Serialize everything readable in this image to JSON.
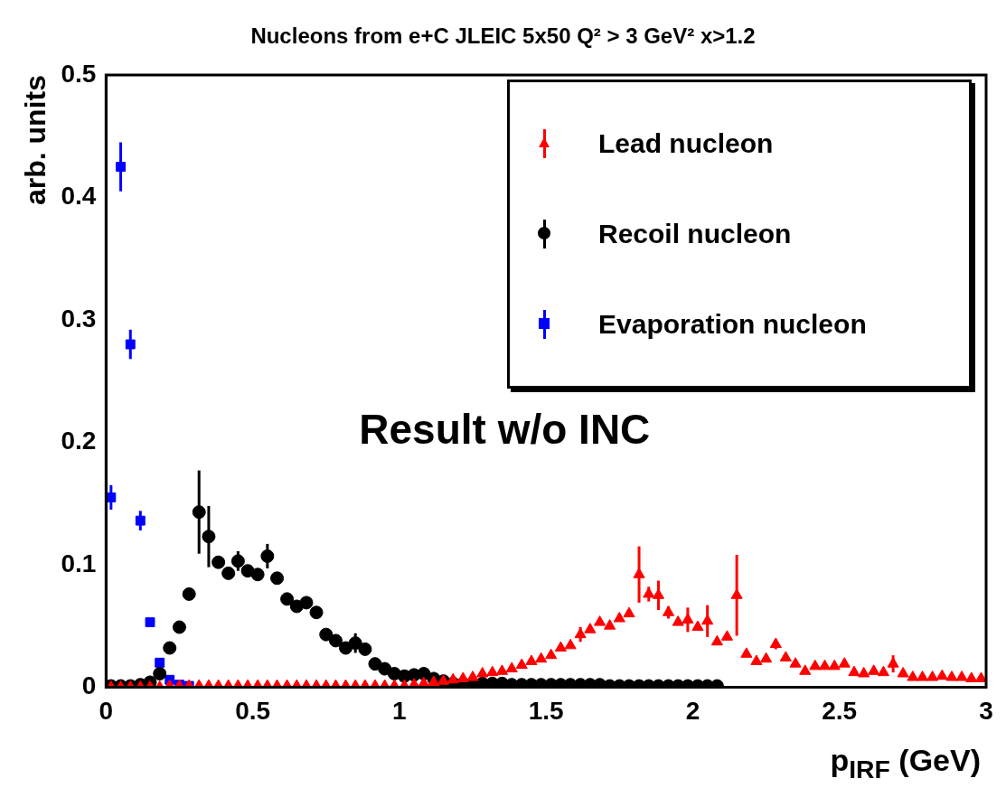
{
  "chart_data": {
    "type": "scatter",
    "title": "Nucleons from e+C JLEIC 5x50 Q² > 3 GeV² x>1.2",
    "xlabel": "p$_{IRF}$ (GeV)",
    "ylabel": "arb. units",
    "xlim": [
      0,
      3
    ],
    "xticks": [
      0,
      0.5,
      1,
      1.5,
      2,
      2.5,
      3
    ],
    "ylim": [
      0,
      0.5
    ],
    "yticks": [
      0,
      0.1,
      0.2,
      0.3,
      0.4,
      0.5
    ],
    "grid": false,
    "legend": "top right",
    "annotations": [
      "Result w/o INC"
    ],
    "series": [
      {
        "name": "Lead nucleon",
        "color": "#ff0000",
        "marker": "triangle",
        "x": [
          0.017,
          0.05,
          0.083,
          0.117,
          0.15,
          0.183,
          0.217,
          0.25,
          0.283,
          0.317,
          0.35,
          0.383,
          0.417,
          0.45,
          0.483,
          0.517,
          0.55,
          0.583,
          0.617,
          0.65,
          0.683,
          0.717,
          0.75,
          0.783,
          0.817,
          0.85,
          0.883,
          0.917,
          0.95,
          0.983,
          1.017,
          1.05,
          1.083,
          1.117,
          1.15,
          1.183,
          1.217,
          1.25,
          1.283,
          1.317,
          1.35,
          1.383,
          1.417,
          1.45,
          1.483,
          1.517,
          1.55,
          1.583,
          1.617,
          1.65,
          1.683,
          1.717,
          1.75,
          1.783,
          1.817,
          1.85,
          1.883,
          1.917,
          1.95,
          1.983,
          2.017,
          2.05,
          2.083,
          2.117,
          2.15,
          2.183,
          2.217,
          2.25,
          2.283,
          2.317,
          2.35,
          2.383,
          2.417,
          2.45,
          2.483,
          2.517,
          2.55,
          2.583,
          2.617,
          2.65,
          2.683,
          2.717,
          2.75,
          2.783,
          2.817,
          2.85,
          2.883,
          2.917,
          2.95,
          2.983
        ],
        "values": [
          0,
          0,
          0,
          0,
          0,
          0,
          0.001,
          0.001,
          0.001,
          0.001,
          0.001,
          0.001,
          0.001,
          0.001,
          0.001,
          0.001,
          0.001,
          0.001,
          0.001,
          0.001,
          0.001,
          0.001,
          0.001,
          0.001,
          0.001,
          0.001,
          0.001,
          0.001,
          0.001,
          0.001,
          0.001,
          0.002,
          0.003,
          0.004,
          0.005,
          0.006,
          0.007,
          0.008,
          0.011,
          0.012,
          0.013,
          0.015,
          0.018,
          0.021,
          0.023,
          0.026,
          0.032,
          0.034,
          0.043,
          0.047,
          0.053,
          0.05,
          0.056,
          0.06,
          0.092,
          0.076,
          0.075,
          0.061,
          0.053,
          0.055,
          0.049,
          0.054,
          0.037,
          0.041,
          0.075,
          0.027,
          0.021,
          0.023,
          0.035,
          0.024,
          0.019,
          0.013,
          0.017,
          0.017,
          0.017,
          0.019,
          0.012,
          0.011,
          0.013,
          0.012,
          0.019,
          0.011,
          0.008,
          0.008,
          0.008,
          0.009,
          0.008,
          0.008,
          0.007,
          0.007
        ],
        "errors": [
          null,
          null,
          null,
          null,
          null,
          null,
          null,
          null,
          null,
          null,
          null,
          null,
          null,
          null,
          null,
          null,
          null,
          null,
          null,
          null,
          null,
          null,
          null,
          null,
          null,
          null,
          null,
          null,
          null,
          null,
          null,
          null,
          null,
          null,
          null,
          null,
          null,
          null,
          null,
          null,
          null,
          null,
          null,
          null,
          null,
          null,
          null,
          null,
          0.006,
          null,
          null,
          null,
          null,
          null,
          0.023,
          0.006,
          0.012,
          0.005,
          null,
          0.01,
          null,
          0.013,
          null,
          null,
          0.033,
          null,
          null,
          null,
          0.004,
          null,
          null,
          null,
          null,
          null,
          null,
          null,
          null,
          null,
          null,
          null,
          0.007,
          null,
          null,
          null,
          null,
          null,
          null,
          null,
          null,
          null
        ]
      },
      {
        "name": "Recoil nucleon",
        "color": "#000000",
        "marker": "circle",
        "x": [
          0.017,
          0.05,
          0.083,
          0.117,
          0.15,
          0.183,
          0.217,
          0.25,
          0.283,
          0.317,
          0.35,
          0.383,
          0.417,
          0.45,
          0.483,
          0.517,
          0.55,
          0.583,
          0.617,
          0.65,
          0.683,
          0.717,
          0.75,
          0.783,
          0.817,
          0.85,
          0.883,
          0.917,
          0.95,
          0.983,
          1.017,
          1.05,
          1.083,
          1.117,
          1.15,
          1.183,
          1.217,
          1.25,
          1.283,
          1.317,
          1.35,
          1.383,
          1.417,
          1.45,
          1.483,
          1.517,
          1.55,
          1.583,
          1.617,
          1.65,
          1.683,
          1.717,
          1.75,
          1.783,
          1.817,
          1.85,
          1.883,
          1.917,
          1.95,
          1.983,
          2.017,
          2.05,
          2.083
        ],
        "values": [
          0.001,
          0.001,
          0.001,
          0.002,
          0.004,
          0.011,
          0.032,
          0.049,
          0.076,
          0.143,
          0.123,
          0.102,
          0.093,
          0.103,
          0.095,
          0.092,
          0.107,
          0.089,
          0.072,
          0.066,
          0.069,
          0.061,
          0.043,
          0.038,
          0.032,
          0.036,
          0.031,
          0.019,
          0.015,
          0.011,
          0.009,
          0.01,
          0.011,
          0.007,
          0.005,
          0.003,
          0.003,
          0.003,
          0.003,
          0.003,
          0.003,
          0.002,
          0.002,
          0.002,
          0.002,
          0.002,
          0.002,
          0.002,
          0.002,
          0.002,
          0.002,
          0.001,
          0.001,
          0.001,
          0.001,
          0.001,
          0.001,
          0.001,
          0.001,
          0.001,
          0.001,
          0.001,
          0.001
        ],
        "errors": [
          null,
          null,
          null,
          null,
          null,
          null,
          null,
          null,
          null,
          0.034,
          0.025,
          null,
          null,
          0.008,
          null,
          null,
          0.01,
          null,
          null,
          null,
          null,
          null,
          null,
          null,
          null,
          0.008,
          null,
          null,
          null,
          null,
          null,
          null,
          null,
          null,
          null,
          null,
          null,
          null,
          null,
          null,
          null,
          null,
          null,
          null,
          null,
          null,
          null,
          null,
          null,
          null,
          null,
          null,
          null,
          null,
          null,
          null,
          null,
          null,
          null,
          null,
          null,
          null,
          null
        ]
      },
      {
        "name": "Evaporation nucleon",
        "color": "#0000ff",
        "marker": "square",
        "x": [
          0.017,
          0.05,
          0.083,
          0.117,
          0.15,
          0.183,
          0.217,
          0.25,
          0.283
        ],
        "values": [
          0.155,
          0.425,
          0.28,
          0.136,
          0.053,
          0.02,
          0.006,
          0.002,
          0.001
        ],
        "errors": [
          0.01,
          0.02,
          0.012,
          0.008,
          null,
          null,
          null,
          null,
          null
        ]
      }
    ]
  }
}
